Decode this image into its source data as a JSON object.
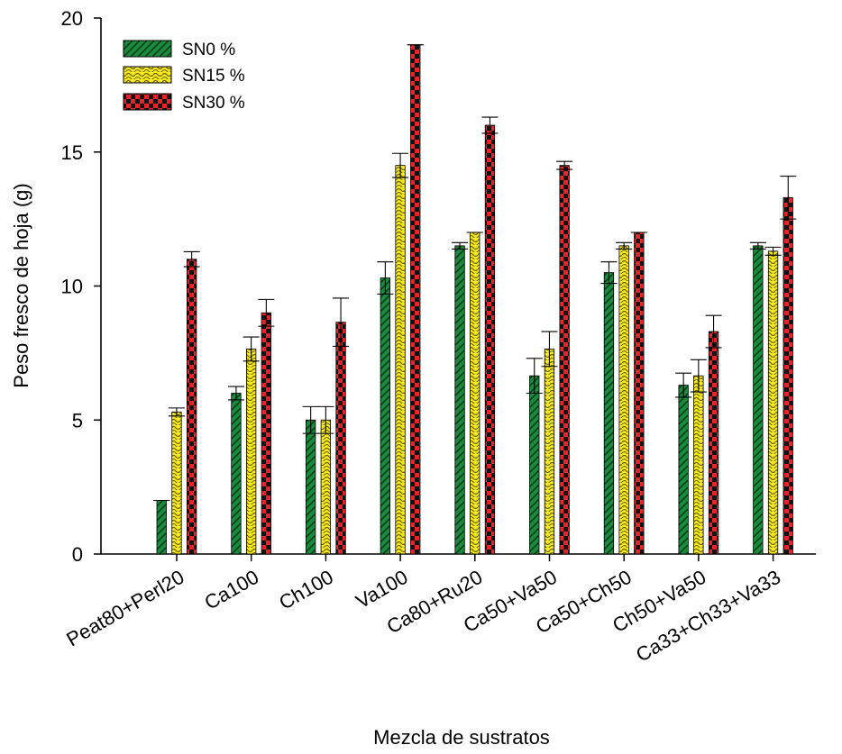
{
  "chart_data": {
    "type": "bar",
    "title": "",
    "xlabel": "Mezcla de sustratos",
    "ylabel": "Peso fresco de hoja (g)",
    "ylim": [
      0,
      20
    ],
    "yticks": [
      0,
      5,
      10,
      15,
      20
    ],
    "grid": false,
    "legend_position": "top-left",
    "categories": [
      "Peat80+Perl20",
      "Ca100",
      "Ch100",
      "Va100",
      "Ca80+Ru20",
      "Ca50+Va50",
      "Ca50+Ch50",
      "Ch50+Va50",
      "Ca33+Ch33+Va33"
    ],
    "series": [
      {
        "name": "SN0 %",
        "color": "#1a8a3c",
        "pattern": "diagonal-hatch",
        "values": [
          2.0,
          6.0,
          5.0,
          10.3,
          11.5,
          6.65,
          10.5,
          6.3,
          11.5
        ],
        "errors": [
          0,
          0.25,
          0.5,
          0.6,
          0.12,
          0.65,
          0.4,
          0.45,
          0.12
        ]
      },
      {
        "name": "SN15 %",
        "color": "#f5e81c",
        "pattern": "wave",
        "values": [
          5.3,
          7.65,
          5.0,
          14.5,
          12.0,
          7.65,
          11.5,
          6.65,
          11.3
        ],
        "errors": [
          0.15,
          0.45,
          0.5,
          0.45,
          0,
          0.65,
          0.12,
          0.6,
          0.15
        ]
      },
      {
        "name": "SN30 %",
        "color": "#e8232a",
        "pattern": "checker",
        "values": [
          11.0,
          9.0,
          8.65,
          19.0,
          16.0,
          14.5,
          12.0,
          8.3,
          13.3
        ],
        "errors": [
          0.28,
          0.5,
          0.9,
          0,
          0.3,
          0.15,
          0,
          0.6,
          0.8
        ]
      }
    ]
  }
}
